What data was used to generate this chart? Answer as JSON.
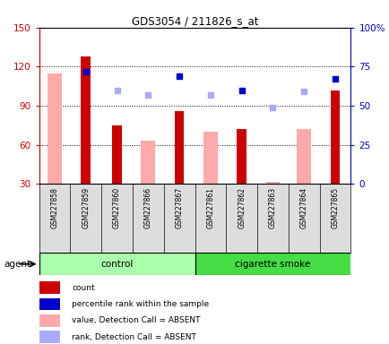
{
  "title": "GDS3054 / 211826_s_at",
  "samples": [
    "GSM227858",
    "GSM227859",
    "GSM227860",
    "GSM227866",
    "GSM227867",
    "GSM227861",
    "GSM227862",
    "GSM227863",
    "GSM227864",
    "GSM227865"
  ],
  "groups": [
    "control",
    "control",
    "control",
    "control",
    "control",
    "cigarette smoke",
    "cigarette smoke",
    "cigarette smoke",
    "cigarette smoke",
    "cigarette smoke"
  ],
  "count_values": [
    null,
    128,
    75,
    null,
    86,
    null,
    72,
    null,
    null,
    102
  ],
  "absent_value_bars": [
    115,
    null,
    null,
    63,
    null,
    70,
    null,
    32,
    72,
    null
  ],
  "present_rank_pct": [
    null,
    72,
    null,
    null,
    69,
    null,
    60,
    null,
    null,
    67
  ],
  "absent_rank_pct": [
    null,
    null,
    60,
    57,
    null,
    57,
    null,
    49,
    59,
    null
  ],
  "ylim_left": [
    30,
    150
  ],
  "ylim_right": [
    0,
    100
  ],
  "yticks_left": [
    30,
    60,
    90,
    120,
    150
  ],
  "yticks_right": [
    0,
    25,
    50,
    75,
    100
  ],
  "ytick_labels_right": [
    "0",
    "25",
    "50",
    "75",
    "100%"
  ],
  "color_count": "#cc0000",
  "color_rank_present": "#0000cc",
  "color_absent_value": "#ffaaaa",
  "color_absent_rank": "#aaaaff",
  "legend_items": [
    {
      "label": "count",
      "color": "#cc0000"
    },
    {
      "label": "percentile rank within the sample",
      "color": "#0000cc"
    },
    {
      "label": "value, Detection Call = ABSENT",
      "color": "#ffaaaa"
    },
    {
      "label": "rank, Detection Call = ABSENT",
      "color": "#aaaaff"
    }
  ]
}
